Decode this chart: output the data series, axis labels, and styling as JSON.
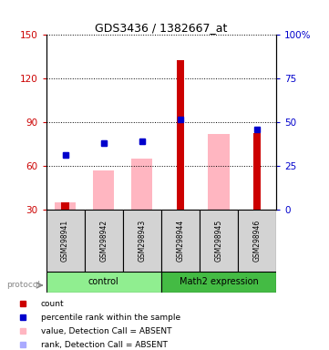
{
  "title": "GDS3436 / 1382667_at",
  "samples": [
    "GSM298941",
    "GSM298942",
    "GSM298943",
    "GSM298944",
    "GSM298945",
    "GSM298946"
  ],
  "ylim_left": [
    30,
    150
  ],
  "ylim_right": [
    0,
    100
  ],
  "yticks_left": [
    30,
    60,
    90,
    120,
    150
  ],
  "yticks_right": [
    0,
    25,
    50,
    75,
    100
  ],
  "yticklabels_right": [
    "0",
    "25",
    "50",
    "75",
    "100%"
  ],
  "red_bars": [
    35,
    0,
    0,
    133,
    0,
    83
  ],
  "pink_bars": [
    35,
    57,
    65,
    0,
    82,
    0
  ],
  "blue_squares_y": [
    68,
    76,
    77,
    92,
    0,
    85
  ],
  "lavender_squares_y": [
    68,
    76,
    77,
    0,
    0,
    0
  ],
  "control_group_label": "control",
  "math2_group_label": "Math2 expression",
  "protocol_label": "protocol",
  "legend_items": [
    {
      "color": "#CC0000",
      "label": "count"
    },
    {
      "color": "#0000CC",
      "label": "percentile rank within the sample"
    },
    {
      "color": "#FFB6C1",
      "label": "value, Detection Call = ABSENT"
    },
    {
      "color": "#C8C8FF",
      "label": "rank, Detection Call = ABSENT"
    }
  ],
  "left_axis_color": "#CC0000",
  "right_axis_color": "#0000CC",
  "pink_bar_width": 0.55,
  "red_bar_width": 0.2,
  "sample_box_color": "#D3D3D3",
  "control_color": "#90EE90",
  "math2_color": "#44BB44"
}
